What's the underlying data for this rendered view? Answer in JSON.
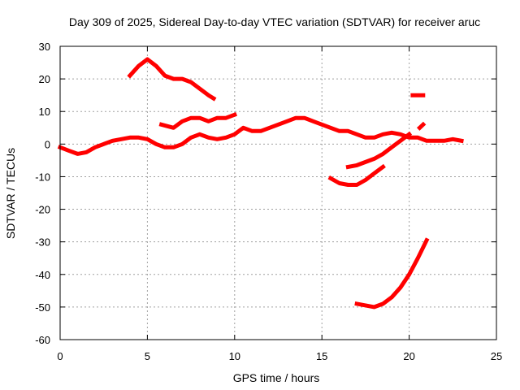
{
  "chart_data": {
    "type": "line",
    "title": "Day 309 of 2025, Sidereal Day-to-day VTEC variation (SDTVAR) for receiver aruc",
    "xlabel": "GPS time / hours",
    "ylabel": "SDTVAR / TECUs",
    "xlim": [
      0,
      25
    ],
    "ylim": [
      -60,
      30
    ],
    "xticks": [
      0,
      5,
      10,
      15,
      20,
      25
    ],
    "yticks": [
      -60,
      -50,
      -40,
      -30,
      -20,
      -10,
      0,
      10,
      20,
      30
    ],
    "grid": true,
    "legend": "none",
    "color": "#ff0000",
    "series": [
      {
        "name": "baseline",
        "points": [
          [
            0,
            -1
          ],
          [
            0.5,
            -2
          ],
          [
            1,
            -3
          ],
          [
            1.5,
            -2.5
          ],
          [
            2,
            -1
          ],
          [
            2.5,
            0
          ],
          [
            3,
            1
          ],
          [
            3.5,
            1.5
          ],
          [
            4,
            2
          ],
          [
            4.5,
            2
          ],
          [
            5,
            1.5
          ],
          [
            5.5,
            0
          ],
          [
            6,
            -1
          ],
          [
            6.5,
            -1
          ],
          [
            7,
            0
          ],
          [
            7.5,
            2
          ],
          [
            8,
            3
          ],
          [
            8.5,
            2
          ],
          [
            9,
            1.5
          ],
          [
            9.5,
            2
          ],
          [
            10,
            3
          ],
          [
            10.5,
            5
          ],
          [
            11,
            4
          ],
          [
            11.5,
            4
          ],
          [
            12,
            5
          ],
          [
            12.5,
            6
          ],
          [
            13,
            7
          ],
          [
            13.5,
            8
          ],
          [
            14,
            8
          ],
          [
            14.5,
            7
          ],
          [
            15,
            6
          ],
          [
            15.5,
            5
          ],
          [
            16,
            4
          ],
          [
            16.5,
            4
          ],
          [
            17,
            3
          ],
          [
            17.5,
            2
          ],
          [
            18,
            2
          ],
          [
            18.5,
            3
          ],
          [
            19,
            3.5
          ],
          [
            19.5,
            3
          ],
          [
            20,
            2
          ],
          [
            20.5,
            2
          ],
          [
            21,
            1
          ],
          [
            21.5,
            1
          ],
          [
            22,
            1
          ],
          [
            22.5,
            1.5
          ],
          [
            23,
            1
          ]
        ]
      },
      {
        "name": "upper-branch",
        "points": [
          [
            4,
            21
          ],
          [
            4.5,
            24
          ],
          [
            5,
            26
          ],
          [
            5.5,
            24
          ],
          [
            6,
            21
          ],
          [
            6.5,
            20
          ],
          [
            7,
            20
          ],
          [
            7.5,
            19
          ],
          [
            8,
            17
          ],
          [
            8.5,
            15
          ],
          [
            8.8,
            14
          ]
        ]
      },
      {
        "name": "mid-branch",
        "points": [
          [
            5.8,
            6
          ],
          [
            6.5,
            5
          ],
          [
            7,
            7
          ],
          [
            7.5,
            8
          ],
          [
            8,
            8
          ],
          [
            8.5,
            7
          ],
          [
            9,
            8
          ],
          [
            9.5,
            8
          ],
          [
            10,
            9
          ]
        ]
      },
      {
        "name": "dip-branch",
        "points": [
          [
            15.5,
            -10.5
          ],
          [
            16,
            -12
          ],
          [
            16.5,
            -12.5
          ],
          [
            17,
            -12.5
          ],
          [
            17.5,
            -11
          ],
          [
            18,
            -9
          ],
          [
            18.5,
            -7
          ]
        ]
      },
      {
        "name": "rising-branch",
        "points": [
          [
            16.5,
            -7
          ],
          [
            17,
            -6.5
          ],
          [
            17.5,
            -5.5
          ],
          [
            18,
            -4.5
          ],
          [
            18.5,
            -3
          ],
          [
            19,
            -1
          ],
          [
            19.5,
            1
          ],
          [
            20,
            3
          ]
        ]
      },
      {
        "name": "deep-branch",
        "points": [
          [
            17,
            -49
          ],
          [
            17.5,
            -49.5
          ],
          [
            18,
            -50
          ],
          [
            18.5,
            -49
          ],
          [
            19,
            -47
          ],
          [
            19.5,
            -44
          ],
          [
            20,
            -40
          ],
          [
            20.5,
            -35
          ],
          [
            21,
            -29.5
          ]
        ]
      },
      {
        "name": "short-high",
        "points": [
          [
            20.2,
            15
          ],
          [
            20.8,
            15
          ]
        ]
      },
      {
        "name": "short-mid",
        "points": [
          [
            20.6,
            5
          ],
          [
            20.8,
            6
          ]
        ]
      }
    ]
  }
}
